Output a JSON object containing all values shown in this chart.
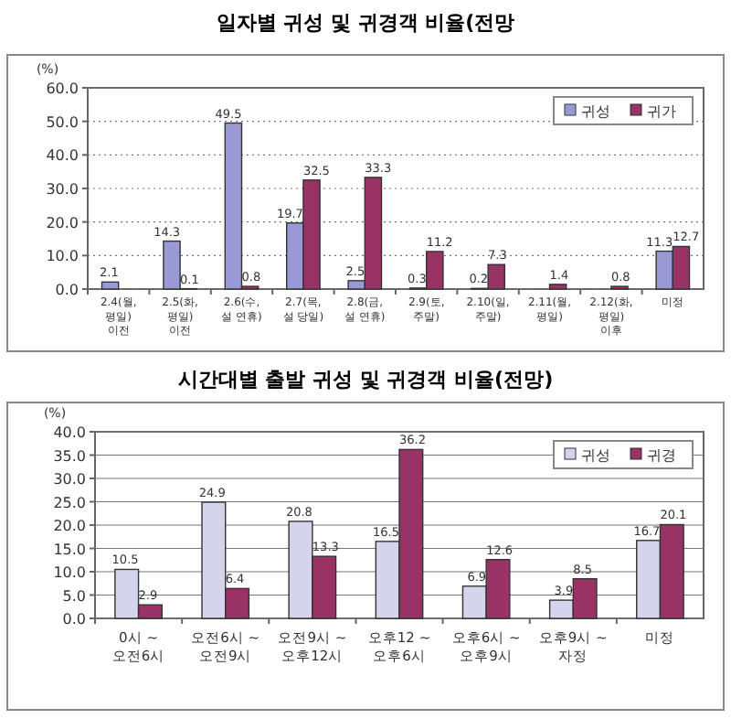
{
  "chart_data": [
    {
      "type": "bar",
      "title": "일자별 귀성 및 귀경객 비율(전망",
      "ylabel": "(%)",
      "categories": [
        "2.4(월, 평일) 이전",
        "2.5(화, 평일) 이전",
        "2.6(수, 설 연휴)",
        "2.7(목, 설 당일)",
        "2.8(금, 설 연휴)",
        "2.9(토, 주말)",
        "2.10(일, 주말)",
        "2.11(월, 평일)",
        "2.12(화, 평일) 이후",
        "미정"
      ],
      "series": [
        {
          "name": "귀성",
          "color": "#9999d6",
          "values": [
            2.1,
            14.3,
            49.5,
            19.7,
            2.5,
            0.3,
            0.2,
            null,
            null,
            11.3
          ]
        },
        {
          "name": "귀가",
          "color": "#993366",
          "values": [
            null,
            0.1,
            0.8,
            32.5,
            33.3,
            11.2,
            7.3,
            1.4,
            0.8,
            12.7
          ]
        }
      ],
      "ylim": [
        0,
        60
      ],
      "yticks": [
        {
          "value": 0,
          "label": "0.0"
        },
        {
          "value": 10,
          "label": "10.0"
        },
        {
          "value": 20,
          "label": "20.0"
        },
        {
          "value": 30,
          "label": "30.0"
        },
        {
          "value": 40,
          "label": "40.0"
        },
        {
          "value": 50,
          "label": "50.0"
        },
        {
          "value": 60,
          "label": "60.0"
        }
      ],
      "grid": "y",
      "line_style": "dotted",
      "legend": "top right",
      "data_labels": true
    },
    {
      "type": "bar",
      "title": "시간대별 출발 귀성 및 귀경객 비율(전망)",
      "ylabel": "(%)",
      "categories": [
        "0시 ~ 오전6시",
        "오전6시 ~ 오전9시",
        "오전9시 ~ 오후12시",
        "오후12 ~ 오후6시",
        "오후6시 ~ 오후9시",
        "오후9시 ~ 자정",
        "미정"
      ],
      "series": [
        {
          "name": "귀성",
          "color": "#d4d4ec",
          "values": [
            10.5,
            24.9,
            20.8,
            16.5,
            6.9,
            3.9,
            16.7
          ]
        },
        {
          "name": "귀경",
          "color": "#993366",
          "values": [
            2.9,
            6.4,
            13.3,
            36.2,
            12.6,
            8.5,
            20.1
          ]
        }
      ],
      "ylim": [
        0,
        40
      ],
      "yticks": [
        {
          "value": 0,
          "label": "0.0"
        },
        {
          "value": 5,
          "label": "5.0"
        },
        {
          "value": 10,
          "label": "10.0"
        },
        {
          "value": 15,
          "label": "15.0"
        },
        {
          "value": 20,
          "label": "20.0"
        },
        {
          "value": 25,
          "label": "25.0"
        },
        {
          "value": 30,
          "label": "30.0"
        },
        {
          "value": 35,
          "label": "35.0"
        },
        {
          "value": 40,
          "label": "40.0"
        }
      ],
      "grid": "y",
      "line_style": "solid",
      "legend": "top right",
      "data_labels": true
    }
  ]
}
